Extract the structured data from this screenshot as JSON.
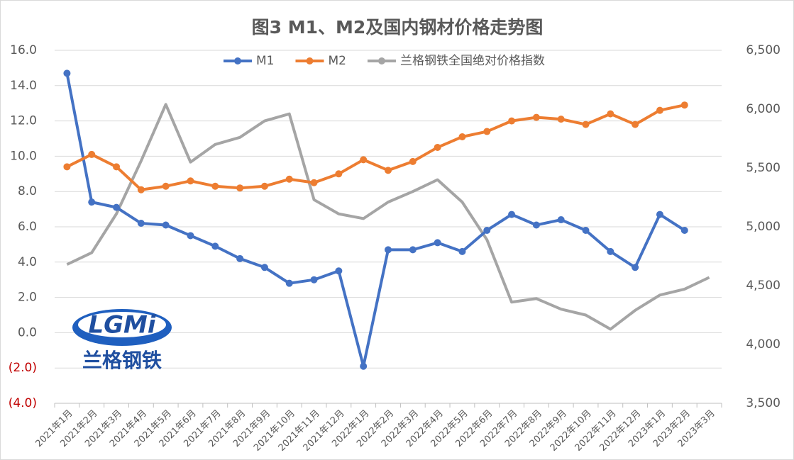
{
  "chart_data": {
    "type": "line",
    "title": "图3 M1、M2及国内钢材价格走势图",
    "categories": [
      "2021年1月",
      "2021年2月",
      "2021年3月",
      "2021年4月",
      "2021年5月",
      "2021年6月",
      "2021年7月",
      "2021年8月",
      "2021年9月",
      "2021年10月",
      "2021年11月",
      "2021年12月",
      "2022年1月",
      "2022年2月",
      "2022年3月",
      "2022年4月",
      "2022年5月",
      "2022年6月",
      "2022年7月",
      "2022年8月",
      "2022年9月",
      "2022年10月",
      "2022年11月",
      "2022年12月",
      "2023年1月",
      "2023年2月",
      "2023年3月"
    ],
    "series": [
      {
        "name": "M1",
        "color": "#4472c4",
        "values": [
          14.7,
          7.4,
          7.1,
          6.2,
          6.1,
          5.5,
          4.9,
          4.2,
          3.7,
          2.8,
          3.0,
          3.5,
          -1.9,
          4.7,
          4.7,
          5.1,
          4.6,
          5.8,
          6.7,
          6.1,
          6.4,
          5.8,
          4.6,
          3.7,
          6.7,
          5.8,
          null
        ]
      },
      {
        "name": "M2",
        "color": "#ed7d31",
        "values": [
          9.4,
          10.1,
          9.4,
          8.1,
          8.3,
          8.6,
          8.3,
          8.2,
          8.3,
          8.7,
          8.5,
          9.0,
          9.8,
          9.2,
          9.7,
          10.5,
          11.1,
          11.4,
          12.0,
          12.2,
          12.1,
          11.8,
          12.4,
          11.8,
          12.6,
          12.9,
          null
        ]
      },
      {
        "name": "兰格钢铁全国绝对价格指数",
        "color": "#a5a5a5",
        "axis": "y2",
        "values": [
          4680,
          4780,
          5110,
          5560,
          6040,
          5550,
          5700,
          5760,
          5900,
          5960,
          5230,
          5110,
          5070,
          5210,
          5300,
          5400,
          5210,
          4890,
          4360,
          4390,
          4300,
          4250,
          4130,
          4290,
          4420,
          4470,
          4570
        ]
      }
    ],
    "ylim": [
      -4,
      16
    ],
    "yticks": [
      {
        "value": 16,
        "label": "16.0"
      },
      {
        "value": 14,
        "label": "14.0"
      },
      {
        "value": 12,
        "label": "12.0"
      },
      {
        "value": 10,
        "label": "10.0"
      },
      {
        "value": 8,
        "label": "8.0"
      },
      {
        "value": 6,
        "label": "6.0"
      },
      {
        "value": 4,
        "label": "4.0"
      },
      {
        "value": 2,
        "label": "2.0"
      },
      {
        "value": 0,
        "label": "0.0"
      },
      {
        "value": -2,
        "label": "(2.0)"
      },
      {
        "value": -4,
        "label": "(4.0)"
      }
    ],
    "y2lim": [
      3500,
      6500
    ],
    "y2ticks": [
      {
        "value": 6500,
        "label": "6,500"
      },
      {
        "value": 6000,
        "label": "6,000"
      },
      {
        "value": 5500,
        "label": "5,500"
      },
      {
        "value": 5000,
        "label": "5,000"
      },
      {
        "value": 4500,
        "label": "4,500"
      },
      {
        "value": 4000,
        "label": "4,000"
      },
      {
        "value": 3500,
        "label": "3,500"
      }
    ],
    "grid": true,
    "negative_label_color": "#c00000",
    "legend": "top",
    "annotations": [
      "LGMi",
      "兰格钢铁"
    ]
  }
}
